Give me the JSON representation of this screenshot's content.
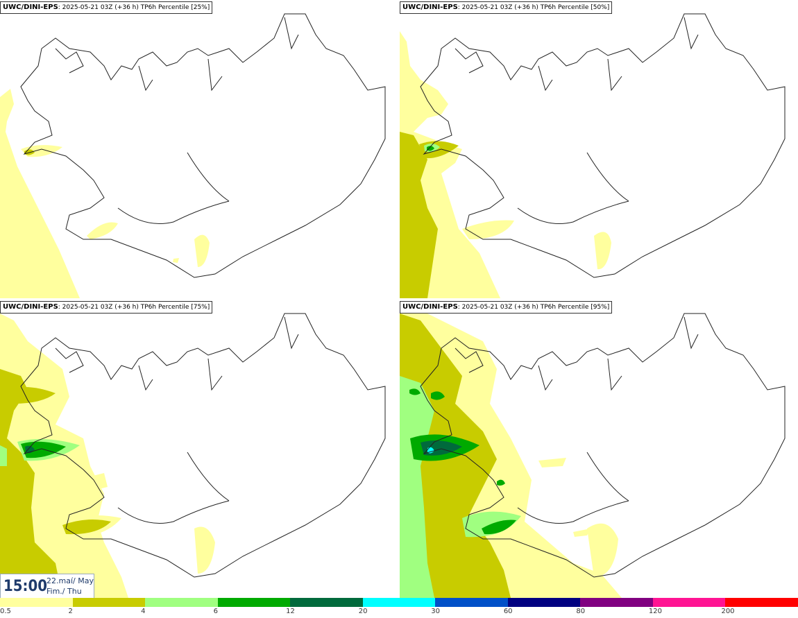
{
  "panels": [
    {
      "model": "UWC/DINI-EPS",
      "info": ": 2025-05-21 03Z (+36 h) TP6h Percentile [25%]"
    },
    {
      "model": "UWC/DINI-EPS",
      "info": ": 2025-05-21 03Z (+36 h) TP6h Percentile [50%]"
    },
    {
      "model": "UWC/DINI-EPS",
      "info": ": 2025-05-21 03Z (+36 h) TP6h Percentile [75%]"
    },
    {
      "model": "UWC/DINI-EPS",
      "info": ": 2025-05-21 03Z (+36 h) TP6h Percentile [95%]"
    }
  ],
  "timebox": {
    "time": "15:00",
    "date_line1": "22.maí/ May",
    "date_line2": "Fim./ Thu"
  },
  "legend": {
    "ticks": [
      "0.5",
      "2",
      "4",
      "6",
      "12",
      "20",
      "30",
      "60",
      "80",
      "120",
      "200"
    ],
    "colors": [
      "#ffff9e",
      "#c8cc00",
      "#a0ff80",
      "#00aa00",
      "#006a3c",
      "#00ffff",
      "#0050c8",
      "#000080",
      "#800080",
      "#ff1493",
      "#ff0000"
    ]
  }
}
